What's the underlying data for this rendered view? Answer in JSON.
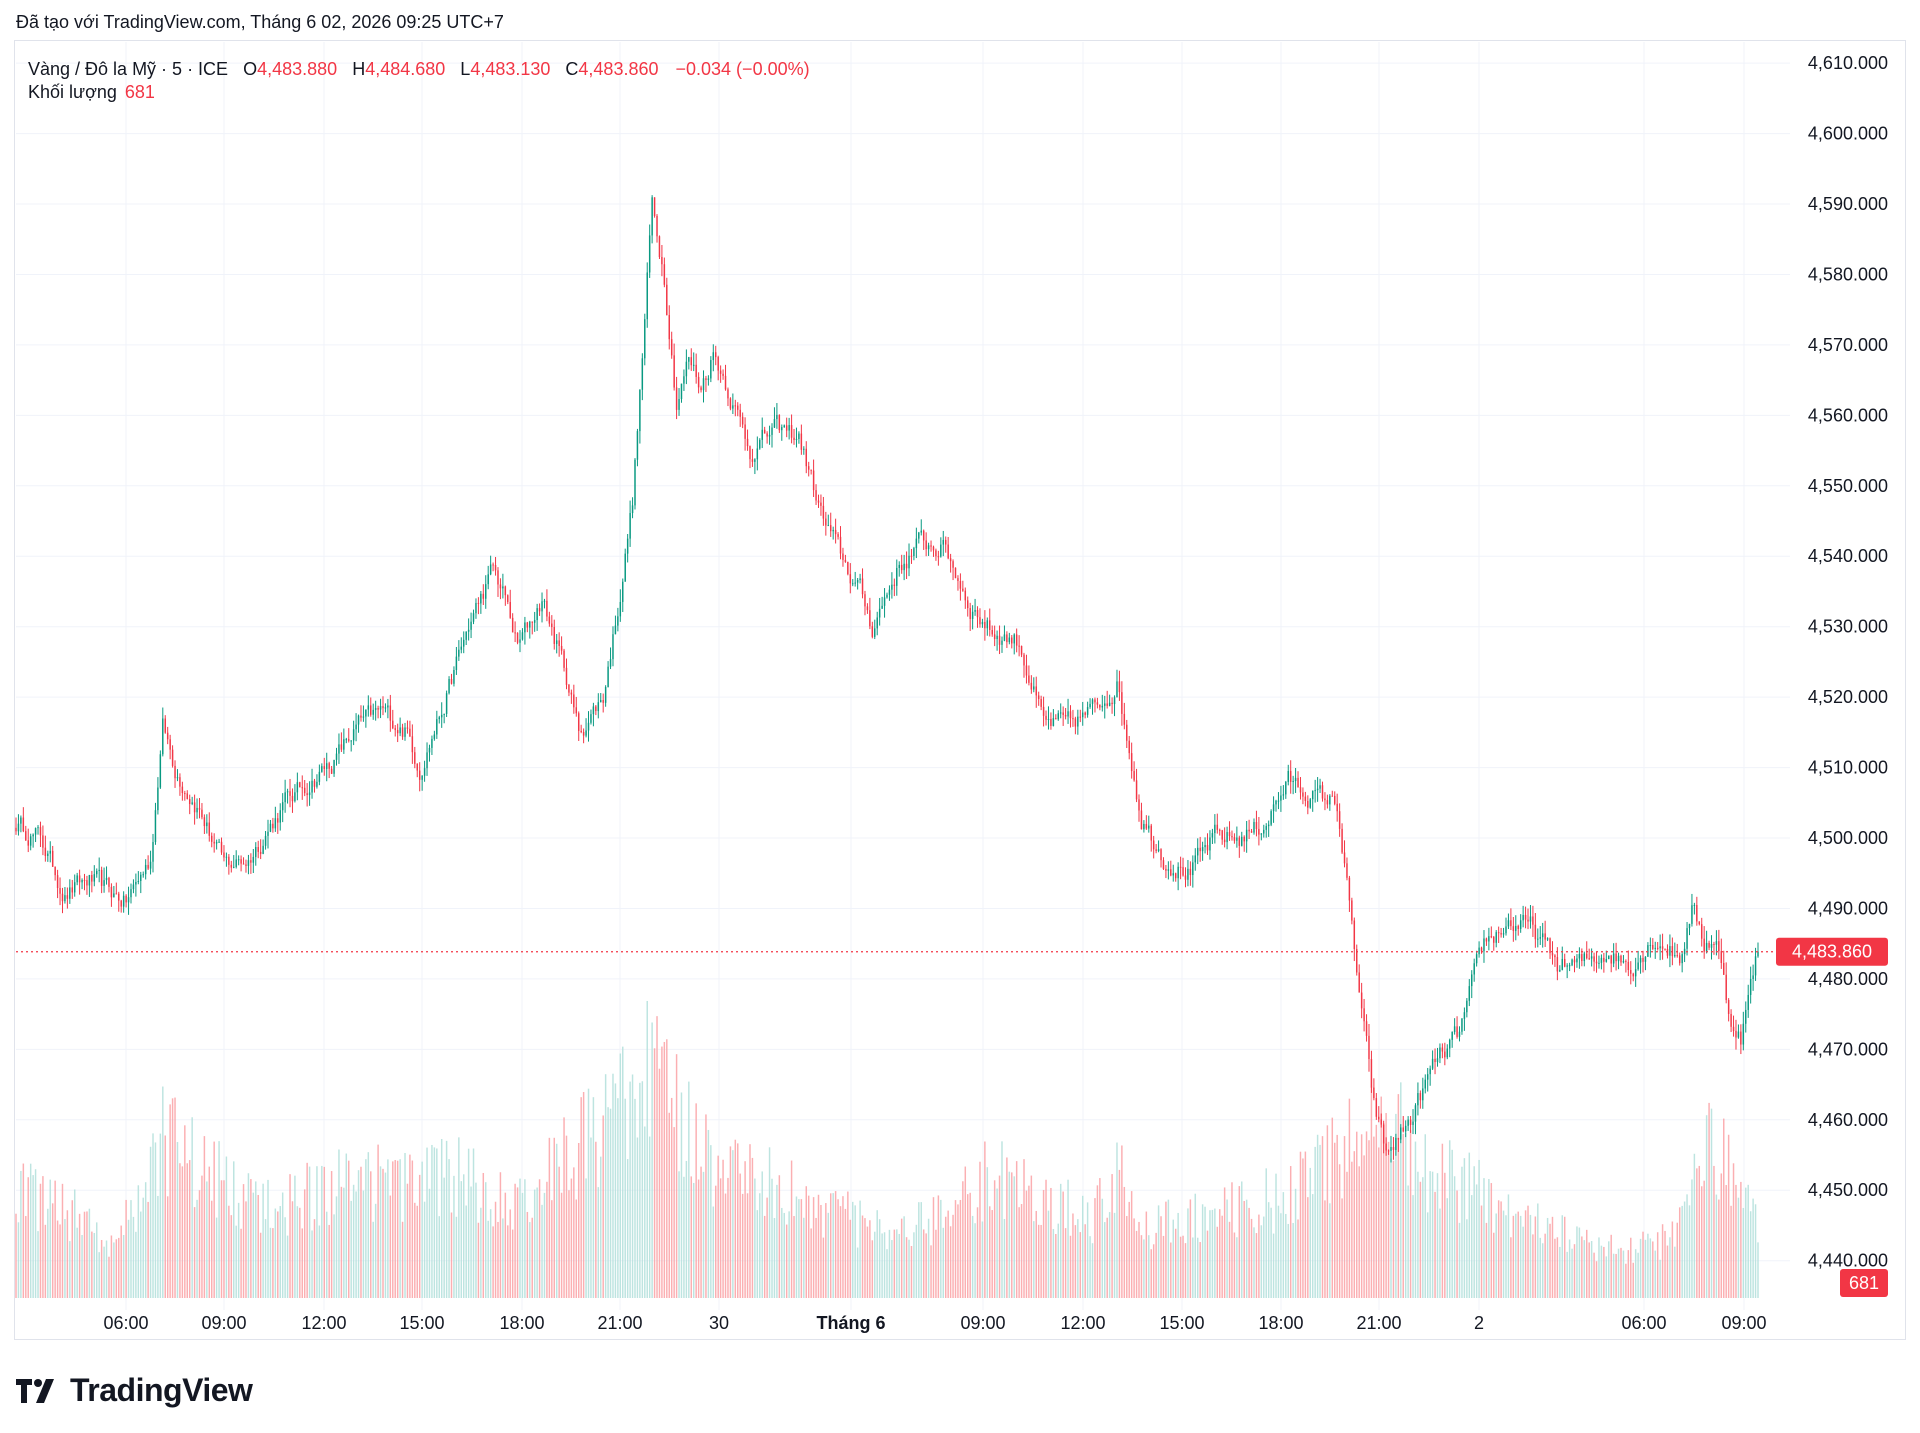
{
  "credit": "Đã tạo với TradingView.com, Tháng 6 02, 2026 09:25 UTC+7",
  "legend": {
    "symbol": "Vàng / Đô la Mỹ · 5 · ICE",
    "o_label": "O",
    "o_value": "4,483.880",
    "h_label": "H",
    "h_value": "4,484.680",
    "l_label": "L",
    "l_value": "4,483.130",
    "c_label": "C",
    "c_value": "4,483.860",
    "change": "−0.034 (−0.00%)"
  },
  "volume_legend": {
    "label": "Khối lượng",
    "value": "681"
  },
  "brand": {
    "name": "TradingView"
  },
  "colors": {
    "up": "#089981",
    "down": "#f23645",
    "grid": "#f0f3fa",
    "text": "#131722",
    "vol_up": "#b2dfdb",
    "vol_down": "#faa1a4"
  },
  "chart_data": {
    "type": "candlestick",
    "interval": "5m",
    "price_axis": {
      "ticks": [
        "4,610.000",
        "4,600.000",
        "4,590.000",
        "4,580.000",
        "4,570.000",
        "4,560.000",
        "4,550.000",
        "4,540.000",
        "4,530.000",
        "4,520.000",
        "4,510.000",
        "4,500.000",
        "4,490.000",
        "4,480.000",
        "4,470.000",
        "4,460.000",
        "4,450.000",
        "4,440.000"
      ],
      "range": [
        4433,
        4613
      ]
    },
    "time_axis": {
      "labels": [
        "06:00",
        "09:00",
        "12:00",
        "15:00",
        "18:00",
        "21:00",
        "30",
        "Tháng 6",
        "09:00",
        "12:00",
        "15:00",
        "18:00",
        "21:00",
        "2",
        "06:00",
        "09:00"
      ],
      "bold_label": "Tháng 6"
    },
    "last_price": {
      "value": 4483.86,
      "label": "4,483.860"
    },
    "last_volume": {
      "value": 681,
      "label": "681"
    },
    "price_path": [
      [
        0,
        4502
      ],
      [
        10,
        4500
      ],
      [
        20,
        4492
      ],
      [
        30,
        4494
      ],
      [
        45,
        4491
      ],
      [
        55,
        4497
      ],
      [
        60,
        4516
      ],
      [
        65,
        4510
      ],
      [
        75,
        4504
      ],
      [
        85,
        4496
      ],
      [
        95,
        4497
      ],
      [
        110,
        4505
      ],
      [
        120,
        4508
      ],
      [
        130,
        4511
      ],
      [
        140,
        4516
      ],
      [
        150,
        4518
      ],
      [
        160,
        4515
      ],
      [
        165,
        4510
      ],
      [
        175,
        4519
      ],
      [
        185,
        4530
      ],
      [
        195,
        4538
      ],
      [
        200,
        4534
      ],
      [
        205,
        4527
      ],
      [
        215,
        4534
      ],
      [
        225,
        4523
      ],
      [
        230,
        4515
      ],
      [
        240,
        4520
      ],
      [
        247,
        4535
      ],
      [
        252,
        4548
      ],
      [
        256,
        4568
      ],
      [
        260,
        4590
      ],
      [
        265,
        4580
      ],
      [
        270,
        4562
      ],
      [
        275,
        4568
      ],
      [
        280,
        4564
      ],
      [
        285,
        4569
      ],
      [
        290,
        4565
      ],
      [
        300,
        4555
      ],
      [
        310,
        4558
      ],
      [
        320,
        4557
      ],
      [
        330,
        4545
      ],
      [
        340,
        4538
      ],
      [
        345,
        4535
      ],
      [
        350,
        4530
      ],
      [
        360,
        4538
      ],
      [
        370,
        4542
      ],
      [
        380,
        4541
      ],
      [
        390,
        4533
      ],
      [
        400,
        4529
      ],
      [
        410,
        4528
      ],
      [
        420,
        4516
      ],
      [
        430,
        4516
      ],
      [
        440,
        4518
      ],
      [
        450,
        4522
      ],
      [
        455,
        4513
      ],
      [
        460,
        4503
      ],
      [
        470,
        4497
      ],
      [
        480,
        4495
      ],
      [
        490,
        4500
      ],
      [
        500,
        4500
      ],
      [
        510,
        4502
      ],
      [
        520,
        4508
      ],
      [
        530,
        4506
      ],
      [
        540,
        4505
      ],
      [
        545,
        4490
      ],
      [
        550,
        4475
      ],
      [
        555,
        4462
      ],
      [
        560,
        4455
      ],
      [
        570,
        4460
      ],
      [
        580,
        4468
      ],
      [
        590,
        4472
      ],
      [
        600,
        4485
      ],
      [
        610,
        4488
      ],
      [
        620,
        4487
      ],
      [
        630,
        4482
      ],
      [
        640,
        4482
      ],
      [
        650,
        4484
      ],
      [
        660,
        4482
      ],
      [
        670,
        4486
      ],
      [
        680,
        4483
      ],
      [
        685,
        4490
      ],
      [
        690,
        4485
      ],
      [
        695,
        4486
      ],
      [
        700,
        4475
      ],
      [
        705,
        4472
      ],
      [
        712,
        4484
      ]
    ],
    "volume_profile": [
      [
        0,
        0.5
      ],
      [
        20,
        0.4
      ],
      [
        40,
        0.25
      ],
      [
        60,
        0.7
      ],
      [
        80,
        0.55
      ],
      [
        100,
        0.38
      ],
      [
        120,
        0.45
      ],
      [
        140,
        0.52
      ],
      [
        160,
        0.48
      ],
      [
        180,
        0.55
      ],
      [
        200,
        0.42
      ],
      [
        220,
        0.6
      ],
      [
        240,
        0.75
      ],
      [
        260,
        1.0
      ],
      [
        280,
        0.65
      ],
      [
        300,
        0.55
      ],
      [
        320,
        0.45
      ],
      [
        340,
        0.35
      ],
      [
        360,
        0.25
      ],
      [
        380,
        0.4
      ],
      [
        400,
        0.55
      ],
      [
        420,
        0.45
      ],
      [
        440,
        0.35
      ],
      [
        450,
        0.6
      ],
      [
        460,
        0.3
      ],
      [
        480,
        0.35
      ],
      [
        500,
        0.4
      ],
      [
        520,
        0.45
      ],
      [
        545,
        0.7
      ],
      [
        560,
        0.8
      ],
      [
        580,
        0.55
      ],
      [
        600,
        0.45
      ],
      [
        620,
        0.35
      ],
      [
        640,
        0.25
      ],
      [
        660,
        0.2
      ],
      [
        680,
        0.3
      ],
      [
        690,
        0.7
      ],
      [
        700,
        0.6
      ],
      [
        712,
        0.3
      ]
    ]
  }
}
